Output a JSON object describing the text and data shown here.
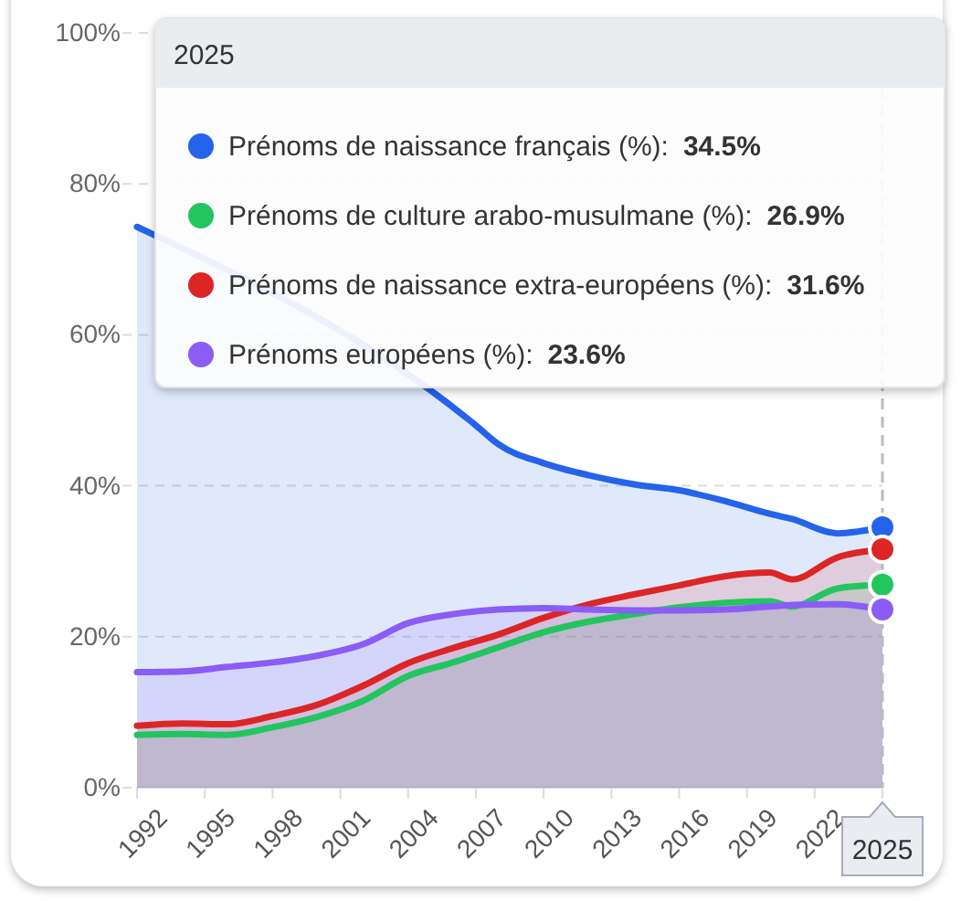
{
  "chart_data": {
    "type": "area",
    "x": [
      1992,
      1994,
      1996,
      1998,
      2000,
      2002,
      2004,
      2006,
      2008,
      2010,
      2012,
      2014,
      2016,
      2018,
      2020,
      2021,
      2023,
      2025
    ],
    "series": [
      {
        "name": "Prénoms de naissance français (%):",
        "color": "#2563eb",
        "x": [
          1992,
          2007,
          2008,
          2010,
          2012,
          2014,
          2016,
          2018,
          2020,
          2021,
          2023,
          2025
        ],
        "values": [
          74.3,
          48,
          45.5,
          43,
          41.4,
          40.2,
          39.4,
          38,
          36.3,
          35.6,
          33.7,
          34.5
        ]
      },
      {
        "name": "Prénoms de culture arabo-musulmane (%):",
        "color": "#22c55e",
        "values": [
          7.0,
          7.1,
          7.0,
          8.0,
          9.4,
          11.5,
          14.8,
          16.6,
          18.6,
          20.6,
          22,
          23,
          23.9,
          24.5,
          24.7,
          24.0,
          26.4,
          26.9
        ]
      },
      {
        "name": "Prénoms de naissance extra-européens (%):",
        "color": "#dc2626",
        "values": [
          8.2,
          8.5,
          8.4,
          9.5,
          11,
          13.5,
          16.5,
          18.5,
          20.3,
          22.5,
          24.3,
          25.6,
          26.8,
          28,
          28.5,
          27.6,
          30.5,
          31.6
        ]
      },
      {
        "name": "Prénoms européens (%):",
        "color": "#8b5cf6",
        "values": [
          15.3,
          15.4,
          16.0,
          16.6,
          17.5,
          19,
          21.8,
          23.0,
          23.6,
          23.8,
          23.6,
          23.5,
          23.5,
          23.6,
          24,
          24.2,
          24.3,
          23.6
        ]
      }
    ],
    "xlim": [
      1992,
      2025
    ],
    "xticks": [
      1992,
      1995,
      1998,
      2001,
      2004,
      2007,
      2010,
      2013,
      2016,
      2019,
      2022
    ],
    "ylim": [
      0,
      100
    ],
    "yticks": [
      {
        "value": 0,
        "label": "0%"
      },
      {
        "value": 20,
        "label": "20%"
      },
      {
        "value": 40,
        "label": "40%"
      },
      {
        "value": 60,
        "label": "60%"
      },
      {
        "value": 80,
        "label": "80%"
      },
      {
        "value": 100,
        "label": "100%"
      }
    ],
    "grid": "y",
    "legend": "top",
    "marker": "none",
    "annotations": [
      "2025",
      "34.5%",
      "26.9%",
      "31.6%",
      "23.6%"
    ],
    "ref_lines": [
      {
        "axis": "x",
        "value": 2025,
        "label": "2025",
        "line_style": "dashed"
      }
    ]
  }
}
